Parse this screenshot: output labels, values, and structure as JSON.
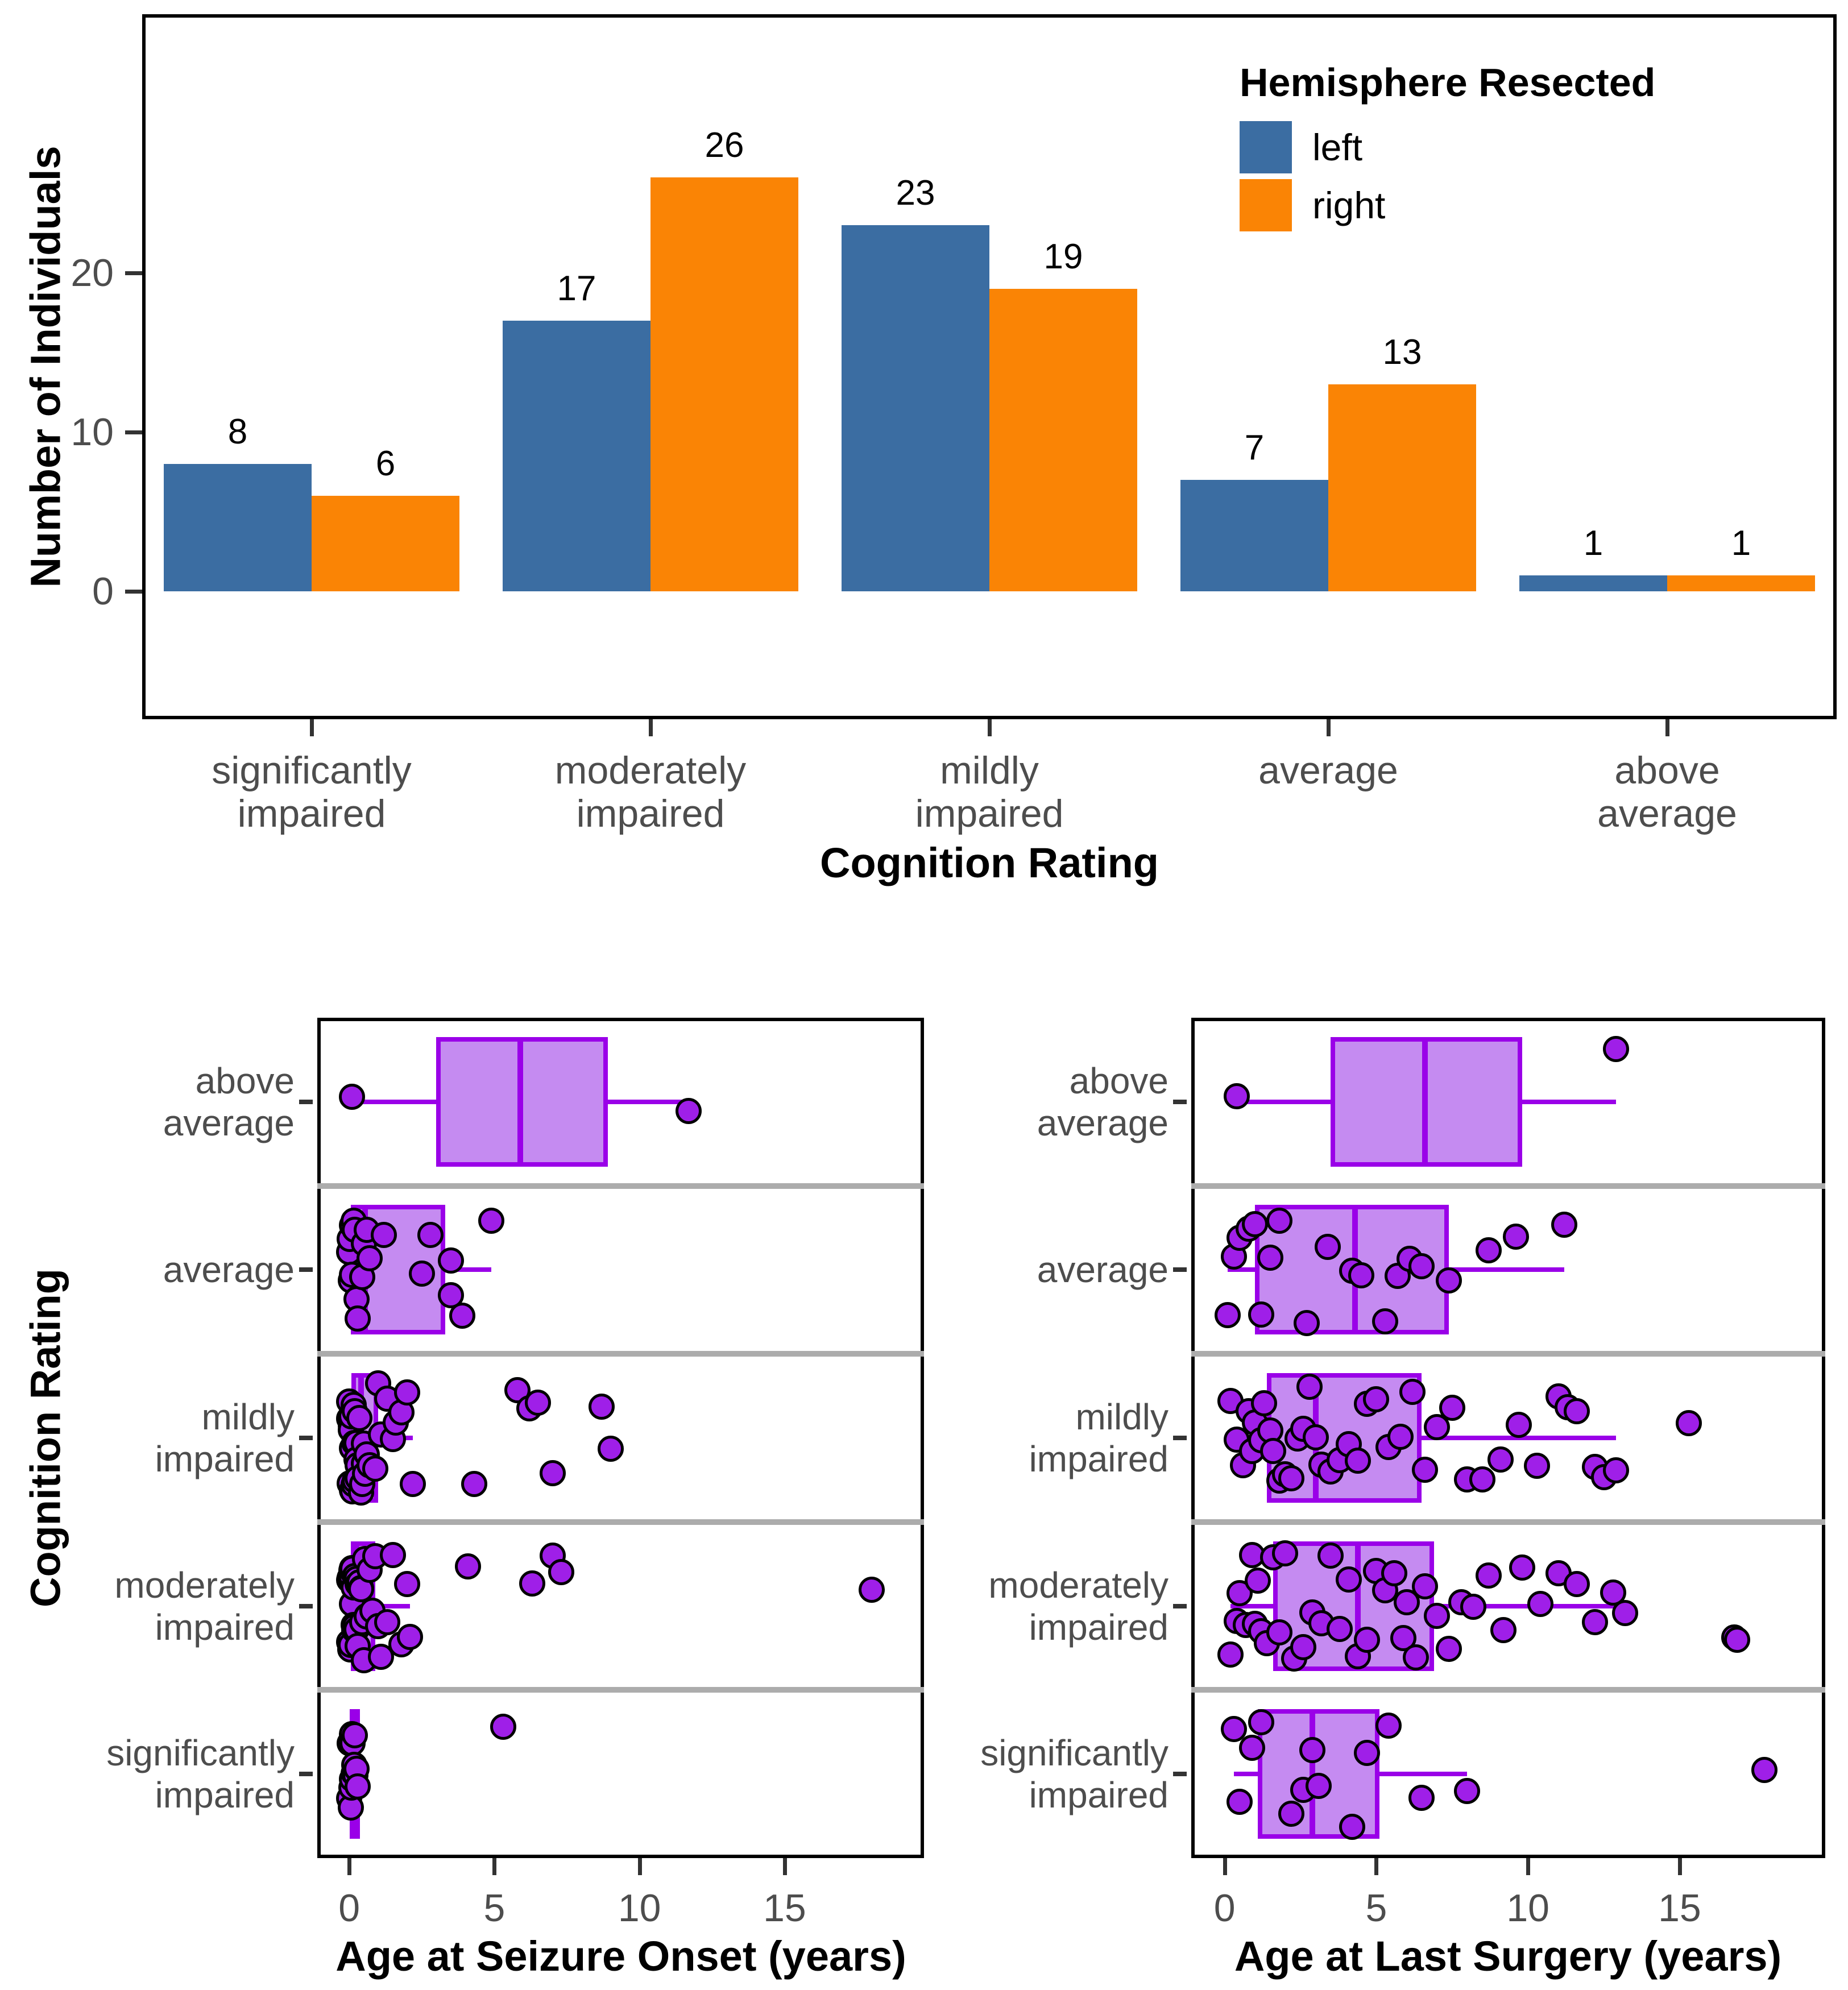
{
  "colors": {
    "bar_left": "#3B6DA2",
    "bar_right": "#FA8405",
    "box_fill": "#C58BF1",
    "box_border": "#9A00E8",
    "point_fill": "#9F1FE8",
    "point_stroke": "#000000",
    "separator": "#ACACAC",
    "tick_label": "#4D4D4D",
    "axis_line": "#000000"
  },
  "chart_data": [
    {
      "id": "hemisphere_bar_chart",
      "type": "bar",
      "xlabel": "Cognition Rating",
      "ylabel": "Number of Individuals",
      "legend_title": "Hemisphere Resected",
      "legend_position": "top-right-inside",
      "grid": false,
      "categories": [
        "significantly impaired",
        "moderately impaired",
        "mildly impaired",
        "average",
        "above average"
      ],
      "series": [
        {
          "name": "left",
          "color": "#3B6DA2",
          "values": [
            8,
            17,
            23,
            7,
            1
          ]
        },
        {
          "name": "right",
          "color": "#FA8405",
          "values": [
            6,
            26,
            19,
            13,
            1
          ]
        }
      ],
      "bar_value_labels": [
        [
          "8",
          "6"
        ],
        [
          "17",
          "26"
        ],
        [
          "23",
          "19"
        ],
        [
          "7",
          "13"
        ],
        [
          "1",
          "1"
        ]
      ],
      "yticks": [
        "0",
        "10",
        "20"
      ],
      "ylim": [
        0,
        36
      ]
    },
    {
      "id": "age_seizure_onset_boxplot",
      "type": "boxplot",
      "orientation": "horizontal",
      "xlabel": "Age at Seizure Onset (years)",
      "ylabel": "Cognition Rating",
      "xticks": [
        "0",
        "5",
        "10",
        "15"
      ],
      "xtick_values": [
        0,
        5,
        10,
        15
      ],
      "xlim": [
        -1.1,
        19.8
      ],
      "categories": [
        "above average",
        "average",
        "mildly impaired",
        "moderately impaired",
        "significantly impaired"
      ],
      "boxes": [
        {
          "whisker_low": 0.1,
          "q1": 3.0,
          "median": 5.9,
          "q3": 8.9,
          "whisker_high": 11.7
        },
        {
          "whisker_low": 0.0,
          "q1": 0.05,
          "median": 0.55,
          "q3": 3.3,
          "whisker_high": 4.9
        },
        {
          "whisker_low": 0.0,
          "q1": 0.08,
          "median": 0.4,
          "q3": 1.0,
          "whisker_high": 2.2
        },
        {
          "whisker_low": 0.0,
          "q1": 0.05,
          "median": 0.25,
          "q3": 0.9,
          "whisker_high": 2.1
        },
        {
          "whisker_low": 0.0,
          "q1": 0.05,
          "median": 0.12,
          "q3": 0.22,
          "whisker_high": 0.3
        }
      ],
      "points": [
        [
          0.1,
          11.7
        ],
        [
          0.0,
          0.02,
          0.05,
          0.1,
          0.1,
          0.15,
          0.2,
          0.25,
          0.3,
          0.45,
          0.5,
          0.6,
          0.7,
          1.2,
          2.5,
          2.8,
          3.5,
          3.5,
          3.9,
          4.9
        ],
        [
          0.0,
          0.0,
          0.02,
          0.05,
          0.05,
          0.08,
          0.1,
          0.1,
          0.12,
          0.15,
          0.15,
          0.18,
          0.2,
          0.2,
          0.25,
          0.25,
          0.3,
          0.3,
          0.35,
          0.4,
          0.45,
          0.5,
          0.5,
          0.55,
          0.6,
          0.7,
          0.9,
          1.0,
          1.1,
          1.3,
          1.5,
          1.6,
          1.8,
          2.0,
          2.2,
          4.3,
          5.8,
          6.2,
          6.5,
          7.0,
          8.7,
          9.0
        ],
        [
          0.0,
          0.0,
          0.02,
          0.03,
          0.05,
          0.05,
          0.08,
          0.1,
          0.1,
          0.1,
          0.12,
          0.15,
          0.15,
          0.18,
          0.2,
          0.2,
          0.25,
          0.25,
          0.3,
          0.3,
          0.35,
          0.4,
          0.4,
          0.45,
          0.5,
          0.55,
          0.6,
          0.6,
          0.7,
          0.8,
          0.9,
          1.0,
          1.1,
          1.3,
          1.5,
          1.8,
          2.0,
          2.1,
          4.1,
          6.3,
          7.0,
          7.3,
          18.0
        ],
        [
          0.0,
          0.02,
          0.05,
          0.08,
          0.1,
          0.1,
          0.12,
          0.15,
          0.18,
          0.2,
          0.22,
          0.25,
          0.3,
          5.3
        ]
      ]
    },
    {
      "id": "age_last_surgery_boxplot",
      "type": "boxplot",
      "orientation": "horizontal",
      "xlabel": "Age at Last Surgery (years)",
      "ylabel": "",
      "xticks": [
        "0",
        "5",
        "10",
        "15"
      ],
      "xtick_values": [
        0,
        5,
        10,
        15
      ],
      "xlim": [
        -1.1,
        19.8
      ],
      "categories": [
        "above average",
        "average",
        "mildly impaired",
        "moderately impaired",
        "significantly impaired"
      ],
      "boxes": [
        {
          "whisker_low": 0.4,
          "q1": 3.5,
          "median": 6.6,
          "q3": 9.8,
          "whisker_high": 12.9
        },
        {
          "whisker_low": 0.1,
          "q1": 1.0,
          "median": 4.3,
          "q3": 7.4,
          "whisker_high": 11.2
        },
        {
          "whisker_low": 0.2,
          "q1": 1.4,
          "median": 3.0,
          "q3": 6.5,
          "whisker_high": 12.9
        },
        {
          "whisker_low": 0.2,
          "q1": 1.6,
          "median": 4.4,
          "q3": 6.9,
          "whisker_high": 13.2
        },
        {
          "whisker_low": 0.3,
          "q1": 1.1,
          "median": 2.9,
          "q3": 5.1,
          "whisker_high": 8.0
        }
      ],
      "points": [
        [
          0.4,
          12.9
        ],
        [
          0.1,
          0.3,
          0.5,
          0.8,
          1.0,
          1.2,
          1.5,
          1.8,
          2.7,
          3.4,
          4.2,
          4.5,
          5.3,
          5.7,
          6.1,
          6.5,
          7.4,
          8.7,
          9.6,
          11.2
        ],
        [
          0.2,
          0.4,
          0.6,
          0.8,
          0.9,
          1.0,
          1.2,
          1.3,
          1.5,
          1.6,
          1.8,
          2.0,
          2.2,
          2.4,
          2.6,
          2.8,
          3.0,
          3.2,
          3.5,
          3.8,
          4.1,
          4.4,
          4.7,
          5.0,
          5.4,
          5.8,
          6.2,
          6.6,
          7.0,
          7.5,
          8.0,
          8.5,
          9.1,
          9.7,
          10.3,
          11.0,
          11.3,
          11.6,
          12.2,
          12.5,
          12.9,
          15.3
        ],
        [
          0.2,
          0.4,
          0.5,
          0.7,
          0.9,
          1.0,
          1.1,
          1.2,
          1.4,
          1.6,
          1.8,
          2.0,
          2.3,
          2.6,
          2.9,
          3.2,
          3.5,
          3.8,
          4.1,
          4.4,
          4.7,
          5.0,
          5.3,
          5.6,
          5.9,
          6.0,
          6.3,
          6.6,
          7.0,
          7.4,
          7.8,
          8.2,
          8.7,
          9.2,
          9.8,
          10.4,
          11.0,
          11.6,
          12.2,
          12.8,
          13.2,
          16.8,
          16.9
        ],
        [
          0.3,
          0.5,
          0.9,
          1.2,
          2.2,
          2.6,
          2.9,
          3.1,
          4.2,
          4.7,
          5.4,
          6.5,
          8.0,
          17.8
        ]
      ]
    }
  ]
}
